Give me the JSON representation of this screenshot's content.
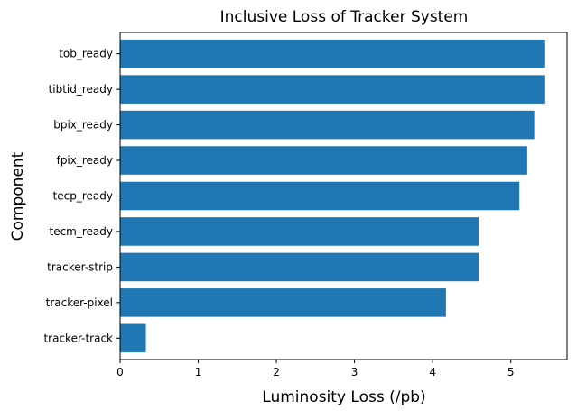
{
  "chart_data": {
    "type": "bar",
    "orientation": "horizontal",
    "title": "Inclusive Loss of Tracker System",
    "xlabel": "Luminosity Loss (/pb)",
    "ylabel": "Component",
    "categories": [
      "tracker-track",
      "tracker-pixel",
      "tracker-strip",
      "tecm_ready",
      "tecp_ready",
      "fpix_ready",
      "bpix_ready",
      "tibtid_ready",
      "tob_ready"
    ],
    "values": [
      0.33,
      4.17,
      4.59,
      4.59,
      5.11,
      5.21,
      5.3,
      5.44,
      5.44
    ],
    "xlim": [
      0,
      5.72
    ],
    "xticks": [
      0,
      1,
      2,
      3,
      4,
      5
    ],
    "xtick_labels": [
      "0",
      "1",
      "2",
      "3",
      "4",
      "5"
    ],
    "grid": false,
    "bar_color": "#1f77b4"
  }
}
